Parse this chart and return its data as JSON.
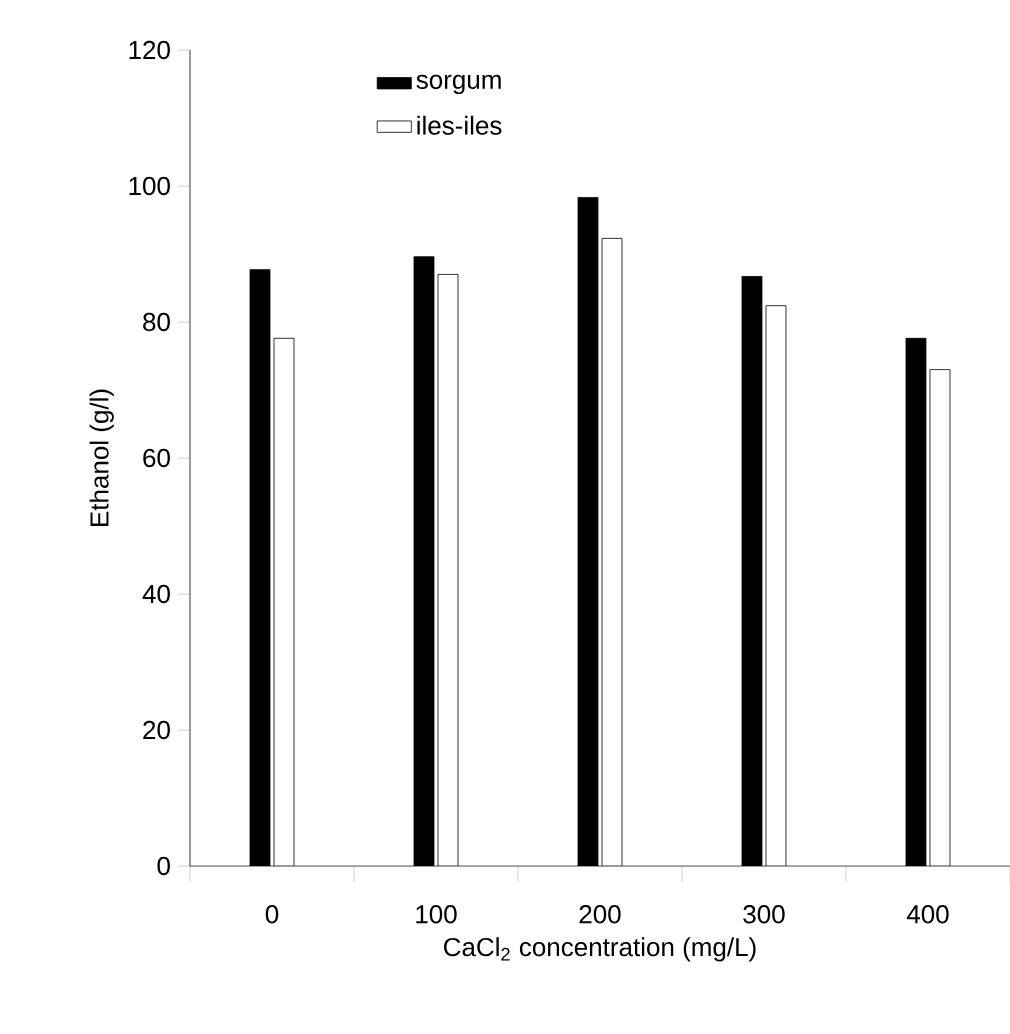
{
  "chart_data": {
    "type": "bar",
    "xlabel": "CaCl$_{2}$ concentration (mg/L)",
    "ylabel": "Ethanol (g/l)",
    "categories": [
      "0",
      "100",
      "200",
      "300",
      "400"
    ],
    "series": [
      {
        "name": "sorgum",
        "color": "#000000",
        "values": [
          87.7,
          89.6,
          98.3,
          86.7,
          77.6
        ]
      },
      {
        "name": "iles-iles",
        "color": "#ffffff",
        "values": [
          77.6,
          87.0,
          92.3,
          82.4,
          73.0
        ]
      }
    ],
    "ylim": [
      0,
      120
    ],
    "yticks": [
      0,
      20,
      40,
      60,
      80,
      100,
      120
    ],
    "legend": "top"
  }
}
